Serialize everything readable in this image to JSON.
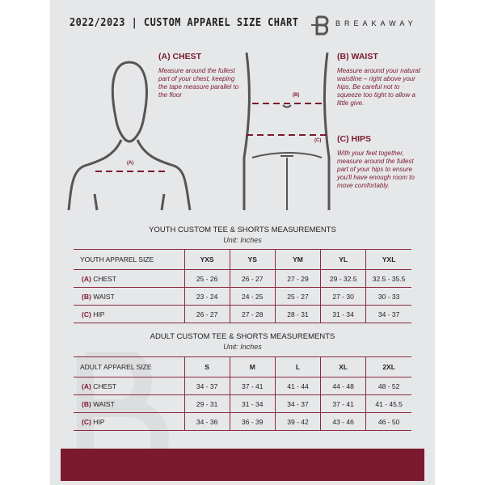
{
  "header": {
    "title": "2022/2023 | CUSTOM APPAREL SIZE CHART",
    "brand": "BREAKAWAY"
  },
  "guides": {
    "chest": {
      "title": "(A) CHEST",
      "text": "Measure around the fullest part of your chest, keeping the tape measure parallel to the floor",
      "marker": "(A)"
    },
    "waist": {
      "title": "(B) WAIST",
      "text": "Measure around your natural waistline – right above your hips. Be careful not to squeeze too tight to allow a little give.",
      "marker": "(B)"
    },
    "hips": {
      "title": "(C) HIPS",
      "text": "With your feet together, measure around the fullest part of your hips to ensure you'll have enough room to move comfortably.",
      "marker": "(C)"
    }
  },
  "youth": {
    "title": "YOUTH CUSTOM TEE & SHORTS MEASUREMENTS",
    "unit": "Unit: Inches",
    "label": "YOUTH APPAREL SIZE",
    "sizes": [
      "YXS",
      "YS",
      "YM",
      "YL",
      "YXL"
    ],
    "rows": [
      {
        "letter": "(A)",
        "name": "CHEST",
        "values": [
          "25 - 26",
          "26 - 27",
          "27 - 29",
          "29 - 32.5",
          "32.5 - 35.5"
        ]
      },
      {
        "letter": "(B)",
        "name": "WAIST",
        "values": [
          "23 - 24",
          "24 - 25",
          "25 - 27",
          "27 - 30",
          "30 - 33"
        ]
      },
      {
        "letter": "(C)",
        "name": "HIP",
        "values": [
          "26 - 27",
          "27 - 28",
          "28 - 31",
          "31 - 34",
          "34 - 37"
        ]
      }
    ]
  },
  "adult": {
    "title": "ADULT CUSTOM TEE & SHORTS MEASUREMENTS",
    "unit": "Unit: Inches",
    "label": "ADULT APPAREL SIZE",
    "sizes": [
      "S",
      "M",
      "L",
      "XL",
      "2XL"
    ],
    "rows": [
      {
        "letter": "(A)",
        "name": "CHEST",
        "values": [
          "34 - 37",
          "37 - 41",
          "41 - 44",
          "44 - 48",
          "48 - 52"
        ]
      },
      {
        "letter": "(B)",
        "name": "WAIST",
        "values": [
          "29 - 31",
          "31 - 34",
          "34 - 37",
          "37 - 41",
          "41 - 45.5"
        ]
      },
      {
        "letter": "(C)",
        "name": "HIP",
        "values": [
          "34 - 36",
          "36 - 39",
          "39 - 42",
          "43 - 46",
          "46 - 50"
        ]
      }
    ]
  },
  "colors": {
    "accent": "#7a1a2e",
    "background": "#e6e7e9"
  }
}
